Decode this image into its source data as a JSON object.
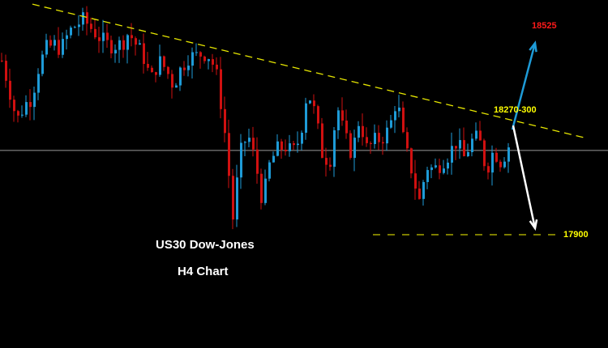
{
  "chart_data": {
    "type": "candlestick",
    "title": "US30 Dow-Jones",
    "subtitle": "H4 Chart",
    "price_path": [
      18468,
      18375,
      18270,
      18322,
      18349,
      18454,
      18507,
      18520,
      18507,
      18560,
      18586,
      18600,
      18573,
      18547,
      18520,
      18520,
      18520,
      18560,
      18520,
      18481,
      18402,
      18468,
      18441,
      18388,
      18441,
      18481,
      18481,
      18494,
      18481,
      18402,
      18217,
      17953,
      18164,
      18230,
      18138,
      18006,
      18138,
      18177,
      18190,
      18164,
      18217,
      18375,
      18296,
      18164,
      18138,
      18322,
      18217,
      18164,
      18283,
      18177,
      18204,
      18217,
      18243,
      18349,
      18190,
      18111,
      18006,
      18124,
      18111,
      18138,
      18164,
      18204,
      18151,
      18204,
      18217,
      18111,
      18177,
      18138,
      18190
    ],
    "up_color": "#1e9bd7",
    "down_color": "#d01010",
    "current_price_line": 18175,
    "resistance_trendline": {
      "from": {
        "bar": 8,
        "price": 18652
      },
      "to": {
        "bar": 144,
        "price": 18217
      },
      "color": "#e6e600",
      "style": "dashed"
    },
    "support_line": {
      "from_bar": 92,
      "to_bar": 138,
      "price": 17900,
      "color": "#c8c800",
      "style": "dashed"
    },
    "arrows": [
      {
        "name": "bullish-target",
        "color": "#1e9bd7",
        "from": {
          "bar": 126.4,
          "price": 18243
        },
        "to": {
          "bar": 132,
          "price": 18525
        }
      },
      {
        "name": "bearish-target",
        "color": "#ffffff",
        "from": {
          "bar": 126.6,
          "price": 18256
        },
        "to": {
          "bar": 132,
          "price": 17921
        }
      }
    ],
    "annotations": [
      {
        "text": "18525",
        "color": "#ff1a1a"
      },
      {
        "text": "18270-300",
        "color": "#ffff00"
      },
      {
        "text": "17900",
        "color": "#ffff00"
      }
    ]
  }
}
